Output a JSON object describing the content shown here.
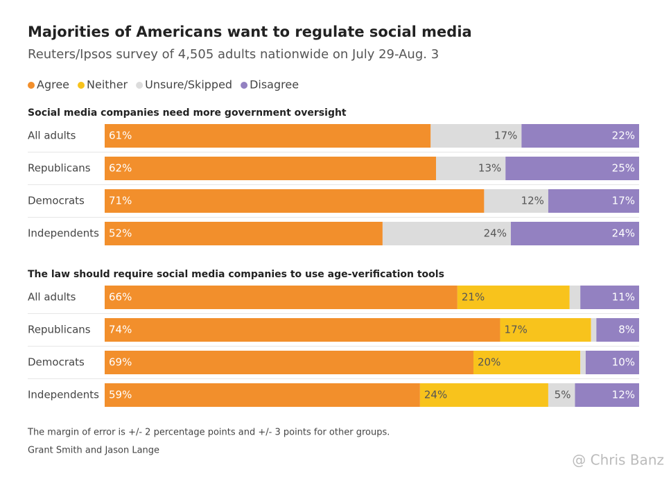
{
  "title": "Majorities of Americans want to regulate social media",
  "subtitle": "Reuters/Ipsos survey of 4,505 adults nationwide on July 29-Aug. 3",
  "note": "The margin of error is +/- 2 percentage points and +/- 3 points for other groups.",
  "credit": "Grant Smith and Jason Lange",
  "watermark": "@ Chris Banz",
  "chart_data": [
    {
      "type": "stacked-bar",
      "orientation": "horizontal",
      "title": "Social media companies need more government oversight",
      "categories": [
        "All adults",
        "Republicans",
        "Democrats",
        "Independents"
      ],
      "xlim": [
        0,
        100
      ],
      "series": [
        {
          "name": "Agree",
          "color": "#f28f2c",
          "values": [
            61,
            62,
            71,
            52
          ],
          "value_labels": [
            "61%",
            "62%",
            "71%",
            "52%"
          ]
        },
        {
          "name": "Neither",
          "color": "#f8c31c",
          "values": [
            null,
            null,
            null,
            null
          ],
          "value_labels": [
            null,
            null,
            null,
            null
          ]
        },
        {
          "name": "Unsure/Skipped",
          "color": "#dcdcdc",
          "values": [
            17,
            13,
            12,
            24
          ],
          "value_labels": [
            "17%",
            "13%",
            "12%",
            "24%"
          ]
        },
        {
          "name": "Disagree",
          "color": "#9381c1",
          "values": [
            22,
            25,
            17,
            24
          ],
          "value_labels": [
            "22%",
            "25%",
            "17%",
            "24%"
          ]
        }
      ]
    },
    {
      "type": "stacked-bar",
      "orientation": "horizontal",
      "title": "The law should require social media companies to use age-verification tools",
      "categories": [
        "All adults",
        "Republicans",
        "Democrats",
        "Independents"
      ],
      "xlim": [
        0,
        100
      ],
      "series": [
        {
          "name": "Agree",
          "color": "#f28f2c",
          "values": [
            66,
            74,
            69,
            59
          ],
          "value_labels": [
            "66%",
            "74%",
            "69%",
            "59%"
          ]
        },
        {
          "name": "Neither",
          "color": "#f8c31c",
          "values": [
            21,
            17,
            20,
            24
          ],
          "value_labels": [
            "21%",
            "17%",
            "20%",
            "24%"
          ]
        },
        {
          "name": "Unsure/Skipped",
          "color": "#dcdcdc",
          "values": [
            2,
            1,
            1,
            5
          ],
          "value_labels": [
            null,
            null,
            null,
            "5%"
          ]
        },
        {
          "name": "Disagree",
          "color": "#9381c1",
          "values": [
            11,
            8,
            10,
            12
          ],
          "value_labels": [
            "11%",
            "8%",
            "10%",
            "12%"
          ]
        }
      ]
    }
  ]
}
